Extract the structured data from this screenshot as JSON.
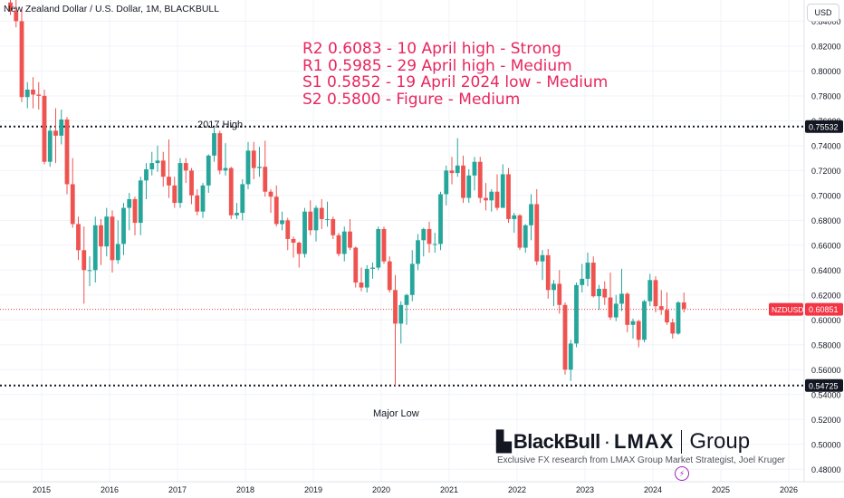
{
  "header": {
    "symbol_title": "New Zealand Dollar / U.S. Dollar, 1M, BLACKBULL",
    "currency": "USD"
  },
  "annotations": {
    "levels": [
      "R2 0.6083 - 10 April high - Strong",
      "R1 0.5985 - 29 April high - Medium",
      "S1 0.5852 - 19 April 2024 low - Medium",
      "S2 0.5800 - Figure - Medium"
    ],
    "high_label": "2017 High",
    "low_label": "Major Low"
  },
  "branding": {
    "logo_mark": "▙",
    "logo_blackbull": "BlackBull",
    "logo_dot": "·",
    "logo_lmax": "LMAX",
    "logo_group": "Group",
    "caption": "Exclusive FX research from LMAX Group Market Strategist, Joel Kruger",
    "tv_icon": "⚡"
  },
  "colors": {
    "up": "#26a69a",
    "down": "#ef5350",
    "annotation": "#e8265e",
    "price_line": "#f23645",
    "dotted_level": "#131722"
  },
  "chart_data": {
    "type": "candlestick",
    "title": "New Zealand Dollar / U.S. Dollar, 1M, BLACKBULL",
    "symbol": "NZDUSD",
    "timeframe": "1M",
    "y_axis": {
      "range": [
        0.47,
        0.857
      ],
      "ticks": [
        "0.84000",
        "0.82000",
        "0.80000",
        "0.78000",
        "0.76000",
        "0.74000",
        "0.72000",
        "0.70000",
        "0.68000",
        "0.66000",
        "0.64000",
        "0.62000",
        "0.60000",
        "0.58000",
        "0.56000",
        "0.54000",
        "0.52000",
        "0.50000",
        "0.48000"
      ],
      "tick_values": [
        0.84,
        0.82,
        0.8,
        0.78,
        0.76,
        0.74,
        0.72,
        0.7,
        0.68,
        0.66,
        0.64,
        0.62,
        0.6,
        0.58,
        0.56,
        0.54,
        0.52,
        0.5,
        0.48
      ]
    },
    "x_axis": {
      "ticks": [
        "2015",
        "2016",
        "2017",
        "2018",
        "2019",
        "2020",
        "2021",
        "2022",
        "2023",
        "2024",
        "2025",
        "2026"
      ],
      "range": [
        "2014-07",
        "2026-02"
      ]
    },
    "price_labels": [
      {
        "text": "0.75532",
        "value": 0.75532,
        "style": "dark"
      },
      {
        "text": "NZDUSD",
        "value": 0.60851,
        "style": "red"
      },
      {
        "text": "0.60851",
        "value": 0.60851,
        "style": "red"
      },
      {
        "text": "0.54725",
        "value": 0.54725,
        "style": "dark"
      }
    ],
    "horizontal_levels": [
      {
        "name": "2017 High",
        "value": 0.75532,
        "style": "dotted"
      },
      {
        "name": "Major Low",
        "value": 0.54725,
        "style": "dotted"
      },
      {
        "name": "NZDUSD",
        "value": 0.60851,
        "style": "dotted-red"
      }
    ],
    "candles": [
      {
        "t": "2014-07",
        "o": 0.855,
        "h": 0.859,
        "l": 0.845,
        "c": 0.848
      },
      {
        "t": "2014-08",
        "o": 0.848,
        "h": 0.858,
        "l": 0.835,
        "c": 0.84
      },
      {
        "t": "2014-09",
        "o": 0.84,
        "h": 0.851,
        "l": 0.775,
        "c": 0.779
      },
      {
        "t": "2014-10",
        "o": 0.779,
        "h": 0.791,
        "l": 0.77,
        "c": 0.785
      },
      {
        "t": "2014-11",
        "o": 0.785,
        "h": 0.795,
        "l": 0.77,
        "c": 0.781
      },
      {
        "t": "2014-12",
        "o": 0.781,
        "h": 0.791,
        "l": 0.769,
        "c": 0.78
      },
      {
        "t": "2015-01",
        "o": 0.78,
        "h": 0.785,
        "l": 0.725,
        "c": 0.727
      },
      {
        "t": "2015-02",
        "o": 0.727,
        "h": 0.755,
        "l": 0.723,
        "c": 0.752
      },
      {
        "t": "2015-03",
        "o": 0.752,
        "h": 0.77,
        "l": 0.726,
        "c": 0.748
      },
      {
        "t": "2015-04",
        "o": 0.748,
        "h": 0.769,
        "l": 0.741,
        "c": 0.761
      },
      {
        "t": "2015-05",
        "o": 0.761,
        "h": 0.763,
        "l": 0.701,
        "c": 0.709
      },
      {
        "t": "2015-06",
        "o": 0.709,
        "h": 0.73,
        "l": 0.674,
        "c": 0.677
      },
      {
        "t": "2015-07",
        "o": 0.677,
        "h": 0.683,
        "l": 0.648,
        "c": 0.656
      },
      {
        "t": "2015-08",
        "o": 0.656,
        "h": 0.675,
        "l": 0.613,
        "c": 0.64
      },
      {
        "t": "2015-09",
        "o": 0.64,
        "h": 0.651,
        "l": 0.627,
        "c": 0.64
      },
      {
        "t": "2015-10",
        "o": 0.64,
        "h": 0.683,
        "l": 0.63,
        "c": 0.676
      },
      {
        "t": "2015-11",
        "o": 0.676,
        "h": 0.681,
        "l": 0.644,
        "c": 0.659
      },
      {
        "t": "2015-12",
        "o": 0.659,
        "h": 0.69,
        "l": 0.651,
        "c": 0.683
      },
      {
        "t": "2016-01",
        "o": 0.683,
        "h": 0.688,
        "l": 0.638,
        "c": 0.648
      },
      {
        "t": "2016-02",
        "o": 0.648,
        "h": 0.68,
        "l": 0.645,
        "c": 0.661
      },
      {
        "t": "2016-03",
        "o": 0.661,
        "h": 0.694,
        "l": 0.652,
        "c": 0.69
      },
      {
        "t": "2016-04",
        "o": 0.69,
        "h": 0.702,
        "l": 0.672,
        "c": 0.697
      },
      {
        "t": "2016-05",
        "o": 0.697,
        "h": 0.699,
        "l": 0.668,
        "c": 0.678
      },
      {
        "t": "2016-06",
        "o": 0.678,
        "h": 0.715,
        "l": 0.668,
        "c": 0.712
      },
      {
        "t": "2016-07",
        "o": 0.712,
        "h": 0.726,
        "l": 0.697,
        "c": 0.721
      },
      {
        "t": "2016-08",
        "o": 0.721,
        "h": 0.735,
        "l": 0.716,
        "c": 0.726
      },
      {
        "t": "2016-09",
        "o": 0.726,
        "h": 0.74,
        "l": 0.719,
        "c": 0.728
      },
      {
        "t": "2016-10",
        "o": 0.728,
        "h": 0.735,
        "l": 0.707,
        "c": 0.715
      },
      {
        "t": "2016-11",
        "o": 0.715,
        "h": 0.745,
        "l": 0.698,
        "c": 0.708
      },
      {
        "t": "2016-12",
        "o": 0.708,
        "h": 0.715,
        "l": 0.69,
        "c": 0.694
      },
      {
        "t": "2017-01",
        "o": 0.694,
        "h": 0.73,
        "l": 0.69,
        "c": 0.726
      },
      {
        "t": "2017-02",
        "o": 0.726,
        "h": 0.73,
        "l": 0.71,
        "c": 0.72
      },
      {
        "t": "2017-03",
        "o": 0.72,
        "h": 0.722,
        "l": 0.693,
        "c": 0.7
      },
      {
        "t": "2017-04",
        "o": 0.7,
        "h": 0.705,
        "l": 0.684,
        "c": 0.687
      },
      {
        "t": "2017-05",
        "o": 0.687,
        "h": 0.71,
        "l": 0.682,
        "c": 0.708
      },
      {
        "t": "2017-06",
        "o": 0.708,
        "h": 0.733,
        "l": 0.702,
        "c": 0.732
      },
      {
        "t": "2017-07",
        "o": 0.732,
        "h": 0.755,
        "l": 0.727,
        "c": 0.75
      },
      {
        "t": "2017-08",
        "o": 0.75,
        "h": 0.752,
        "l": 0.717,
        "c": 0.72
      },
      {
        "t": "2017-09",
        "o": 0.72,
        "h": 0.742,
        "l": 0.716,
        "c": 0.722
      },
      {
        "t": "2017-10",
        "o": 0.722,
        "h": 0.723,
        "l": 0.681,
        "c": 0.684
      },
      {
        "t": "2017-11",
        "o": 0.684,
        "h": 0.694,
        "l": 0.681,
        "c": 0.686
      },
      {
        "t": "2017-12",
        "o": 0.686,
        "h": 0.713,
        "l": 0.68,
        "c": 0.709
      },
      {
        "t": "2018-01",
        "o": 0.709,
        "h": 0.743,
        "l": 0.705,
        "c": 0.736
      },
      {
        "t": "2018-02",
        "o": 0.736,
        "h": 0.743,
        "l": 0.713,
        "c": 0.722
      },
      {
        "t": "2018-03",
        "o": 0.722,
        "h": 0.739,
        "l": 0.715,
        "c": 0.723
      },
      {
        "t": "2018-04",
        "o": 0.723,
        "h": 0.744,
        "l": 0.699,
        "c": 0.703
      },
      {
        "t": "2018-05",
        "o": 0.703,
        "h": 0.705,
        "l": 0.686,
        "c": 0.699
      },
      {
        "t": "2018-06",
        "o": 0.699,
        "h": 0.708,
        "l": 0.675,
        "c": 0.677
      },
      {
        "t": "2018-07",
        "o": 0.677,
        "h": 0.687,
        "l": 0.672,
        "c": 0.68
      },
      {
        "t": "2018-08",
        "o": 0.68,
        "h": 0.682,
        "l": 0.656,
        "c": 0.665
      },
      {
        "t": "2018-09",
        "o": 0.665,
        "h": 0.667,
        "l": 0.65,
        "c": 0.662
      },
      {
        "t": "2018-10",
        "o": 0.662,
        "h": 0.663,
        "l": 0.642,
        "c": 0.653
      },
      {
        "t": "2018-11",
        "o": 0.653,
        "h": 0.69,
        "l": 0.65,
        "c": 0.687
      },
      {
        "t": "2018-12",
        "o": 0.687,
        "h": 0.696,
        "l": 0.668,
        "c": 0.672
      },
      {
        "t": "2019-01",
        "o": 0.672,
        "h": 0.692,
        "l": 0.663,
        "c": 0.69
      },
      {
        "t": "2019-02",
        "o": 0.69,
        "h": 0.697,
        "l": 0.673,
        "c": 0.681
      },
      {
        "t": "2019-03",
        "o": 0.681,
        "h": 0.695,
        "l": 0.675,
        "c": 0.681
      },
      {
        "t": "2019-04",
        "o": 0.681,
        "h": 0.683,
        "l": 0.665,
        "c": 0.668
      },
      {
        "t": "2019-05",
        "o": 0.668,
        "h": 0.67,
        "l": 0.651,
        "c": 0.653
      },
      {
        "t": "2019-06",
        "o": 0.653,
        "h": 0.675,
        "l": 0.647,
        "c": 0.671
      },
      {
        "t": "2019-07",
        "o": 0.671,
        "h": 0.681,
        "l": 0.656,
        "c": 0.658
      },
      {
        "t": "2019-08",
        "o": 0.658,
        "h": 0.659,
        "l": 0.626,
        "c": 0.63
      },
      {
        "t": "2019-09",
        "o": 0.63,
        "h": 0.642,
        "l": 0.623,
        "c": 0.626
      },
      {
        "t": "2019-10",
        "o": 0.626,
        "h": 0.644,
        "l": 0.622,
        "c": 0.641
      },
      {
        "t": "2019-11",
        "o": 0.641,
        "h": 0.646,
        "l": 0.633,
        "c": 0.642
      },
      {
        "t": "2019-12",
        "o": 0.642,
        "h": 0.675,
        "l": 0.64,
        "c": 0.673
      },
      {
        "t": "2020-01",
        "o": 0.673,
        "h": 0.675,
        "l": 0.645,
        "c": 0.647
      },
      {
        "t": "2020-02",
        "o": 0.647,
        "h": 0.651,
        "l": 0.622,
        "c": 0.624
      },
      {
        "t": "2020-03",
        "o": 0.624,
        "h": 0.636,
        "l": 0.547,
        "c": 0.597
      },
      {
        "t": "2020-04",
        "o": 0.597,
        "h": 0.615,
        "l": 0.581,
        "c": 0.612
      },
      {
        "t": "2020-05",
        "o": 0.612,
        "h": 0.621,
        "l": 0.596,
        "c": 0.62
      },
      {
        "t": "2020-06",
        "o": 0.62,
        "h": 0.656,
        "l": 0.615,
        "c": 0.645
      },
      {
        "t": "2020-07",
        "o": 0.645,
        "h": 0.669,
        "l": 0.64,
        "c": 0.664
      },
      {
        "t": "2020-08",
        "o": 0.664,
        "h": 0.674,
        "l": 0.651,
        "c": 0.673
      },
      {
        "t": "2020-09",
        "o": 0.673,
        "h": 0.679,
        "l": 0.654,
        "c": 0.661
      },
      {
        "t": "2020-10",
        "o": 0.661,
        "h": 0.67,
        "l": 0.654,
        "c": 0.661
      },
      {
        "t": "2020-11",
        "o": 0.661,
        "h": 0.703,
        "l": 0.656,
        "c": 0.701
      },
      {
        "t": "2020-12",
        "o": 0.701,
        "h": 0.724,
        "l": 0.692,
        "c": 0.72
      },
      {
        "t": "2021-01",
        "o": 0.72,
        "h": 0.731,
        "l": 0.709,
        "c": 0.718
      },
      {
        "t": "2021-02",
        "o": 0.718,
        "h": 0.746,
        "l": 0.715,
        "c": 0.724
      },
      {
        "t": "2021-03",
        "o": 0.724,
        "h": 0.732,
        "l": 0.694,
        "c": 0.698
      },
      {
        "t": "2021-04",
        "o": 0.698,
        "h": 0.721,
        "l": 0.694,
        "c": 0.716
      },
      {
        "t": "2021-05",
        "o": 0.716,
        "h": 0.731,
        "l": 0.704,
        "c": 0.727
      },
      {
        "t": "2021-06",
        "o": 0.727,
        "h": 0.731,
        "l": 0.694,
        "c": 0.698
      },
      {
        "t": "2021-07",
        "o": 0.698,
        "h": 0.71,
        "l": 0.688,
        "c": 0.696
      },
      {
        "t": "2021-08",
        "o": 0.696,
        "h": 0.705,
        "l": 0.687,
        "c": 0.703
      },
      {
        "t": "2021-09",
        "o": 0.703,
        "h": 0.717,
        "l": 0.688,
        "c": 0.69
      },
      {
        "t": "2021-10",
        "o": 0.69,
        "h": 0.725,
        "l": 0.69,
        "c": 0.717
      },
      {
        "t": "2021-11",
        "o": 0.717,
        "h": 0.722,
        "l": 0.678,
        "c": 0.681
      },
      {
        "t": "2021-12",
        "o": 0.681,
        "h": 0.686,
        "l": 0.67,
        "c": 0.684
      },
      {
        "t": "2022-01",
        "o": 0.684,
        "h": 0.685,
        "l": 0.656,
        "c": 0.658
      },
      {
        "t": "2022-02",
        "o": 0.658,
        "h": 0.677,
        "l": 0.654,
        "c": 0.676
      },
      {
        "t": "2022-03",
        "o": 0.676,
        "h": 0.701,
        "l": 0.664,
        "c": 0.693
      },
      {
        "t": "2022-04",
        "o": 0.693,
        "h": 0.705,
        "l": 0.644,
        "c": 0.647
      },
      {
        "t": "2022-05",
        "o": 0.647,
        "h": 0.656,
        "l": 0.632,
        "c": 0.652
      },
      {
        "t": "2022-06",
        "o": 0.652,
        "h": 0.657,
        "l": 0.617,
        "c": 0.624
      },
      {
        "t": "2022-07",
        "o": 0.624,
        "h": 0.632,
        "l": 0.611,
        "c": 0.629
      },
      {
        "t": "2022-08",
        "o": 0.629,
        "h": 0.64,
        "l": 0.605,
        "c": 0.612
      },
      {
        "t": "2022-09",
        "o": 0.612,
        "h": 0.614,
        "l": 0.556,
        "c": 0.56
      },
      {
        "t": "2022-10",
        "o": 0.56,
        "h": 0.584,
        "l": 0.551,
        "c": 0.581
      },
      {
        "t": "2022-11",
        "o": 0.581,
        "h": 0.63,
        "l": 0.578,
        "c": 0.628
      },
      {
        "t": "2022-12",
        "o": 0.628,
        "h": 0.645,
        "l": 0.622,
        "c": 0.633
      },
      {
        "t": "2023-01",
        "o": 0.633,
        "h": 0.654,
        "l": 0.627,
        "c": 0.646
      },
      {
        "t": "2023-02",
        "o": 0.646,
        "h": 0.651,
        "l": 0.618,
        "c": 0.619
      },
      {
        "t": "2023-03",
        "o": 0.619,
        "h": 0.628,
        "l": 0.608,
        "c": 0.625
      },
      {
        "t": "2023-04",
        "o": 0.625,
        "h": 0.631,
        "l": 0.612,
        "c": 0.618
      },
      {
        "t": "2023-05",
        "o": 0.618,
        "h": 0.638,
        "l": 0.6,
        "c": 0.602
      },
      {
        "t": "2023-06",
        "o": 0.602,
        "h": 0.62,
        "l": 0.599,
        "c": 0.613
      },
      {
        "t": "2023-07",
        "o": 0.613,
        "h": 0.641,
        "l": 0.607,
        "c": 0.621
      },
      {
        "t": "2023-08",
        "o": 0.621,
        "h": 0.622,
        "l": 0.59,
        "c": 0.596
      },
      {
        "t": "2023-09",
        "o": 0.596,
        "h": 0.601,
        "l": 0.585,
        "c": 0.599
      },
      {
        "t": "2023-10",
        "o": 0.599,
        "h": 0.6,
        "l": 0.578,
        "c": 0.584
      },
      {
        "t": "2023-11",
        "o": 0.584,
        "h": 0.616,
        "l": 0.582,
        "c": 0.615
      },
      {
        "t": "2023-12",
        "o": 0.615,
        "h": 0.637,
        "l": 0.611,
        "c": 0.632
      },
      {
        "t": "2024-01",
        "o": 0.632,
        "h": 0.635,
        "l": 0.606,
        "c": 0.611
      },
      {
        "t": "2024-02",
        "o": 0.611,
        "h": 0.624,
        "l": 0.604,
        "c": 0.608
      },
      {
        "t": "2024-03",
        "o": 0.608,
        "h": 0.622,
        "l": 0.596,
        "c": 0.598
      },
      {
        "t": "2024-04",
        "o": 0.598,
        "h": 0.601,
        "l": 0.585,
        "c": 0.589
      },
      {
        "t": "2024-05",
        "o": 0.589,
        "h": 0.615,
        "l": 0.588,
        "c": 0.614
      },
      {
        "t": "2024-06",
        "o": 0.614,
        "h": 0.622,
        "l": 0.606,
        "c": 0.609
      }
    ]
  }
}
